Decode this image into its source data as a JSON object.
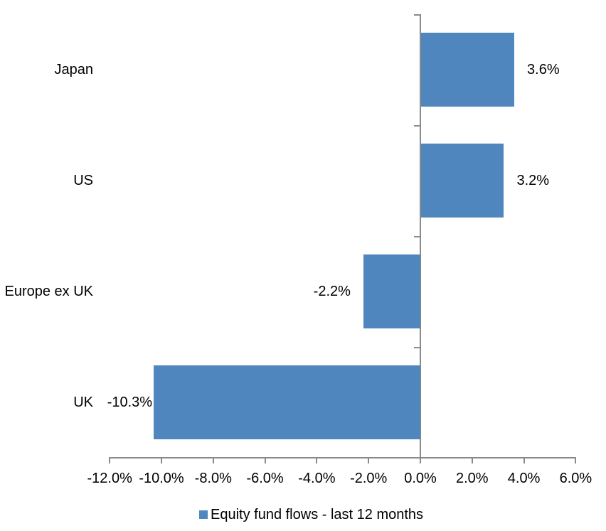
{
  "chart_data": {
    "type": "bar",
    "orientation": "horizontal",
    "title": "",
    "categories": [
      "Japan",
      "US",
      "Europe ex UK",
      "UK"
    ],
    "values": [
      3.6,
      3.2,
      -2.2,
      -10.3
    ],
    "data_labels": [
      "3.6%",
      "3.2%",
      "-2.2%",
      "-10.3%"
    ],
    "series": [
      {
        "name": "Equity fund flows - last 12 months",
        "values": [
          3.6,
          3.2,
          -2.2,
          -10.3
        ]
      }
    ],
    "xlabel": "",
    "ylabel": "",
    "xlim": [
      -12,
      6
    ],
    "x_ticks": [
      -12,
      -10,
      -8,
      -6,
      -4,
      -2,
      0,
      2,
      4,
      6
    ],
    "x_tick_labels": [
      "-12.0%",
      "-10.0%",
      "-8.0%",
      "-6.0%",
      "-4.0%",
      "-2.0%",
      "0.0%",
      "2.0%",
      "4.0%",
      "6.0%"
    ],
    "grid": false,
    "legend_position": "bottom",
    "colors": {
      "bar": "#4e86bd",
      "axis": "#8a8a8a",
      "text": "#000000"
    }
  },
  "legend": {
    "label": "Equity fund flows - last 12 months"
  }
}
